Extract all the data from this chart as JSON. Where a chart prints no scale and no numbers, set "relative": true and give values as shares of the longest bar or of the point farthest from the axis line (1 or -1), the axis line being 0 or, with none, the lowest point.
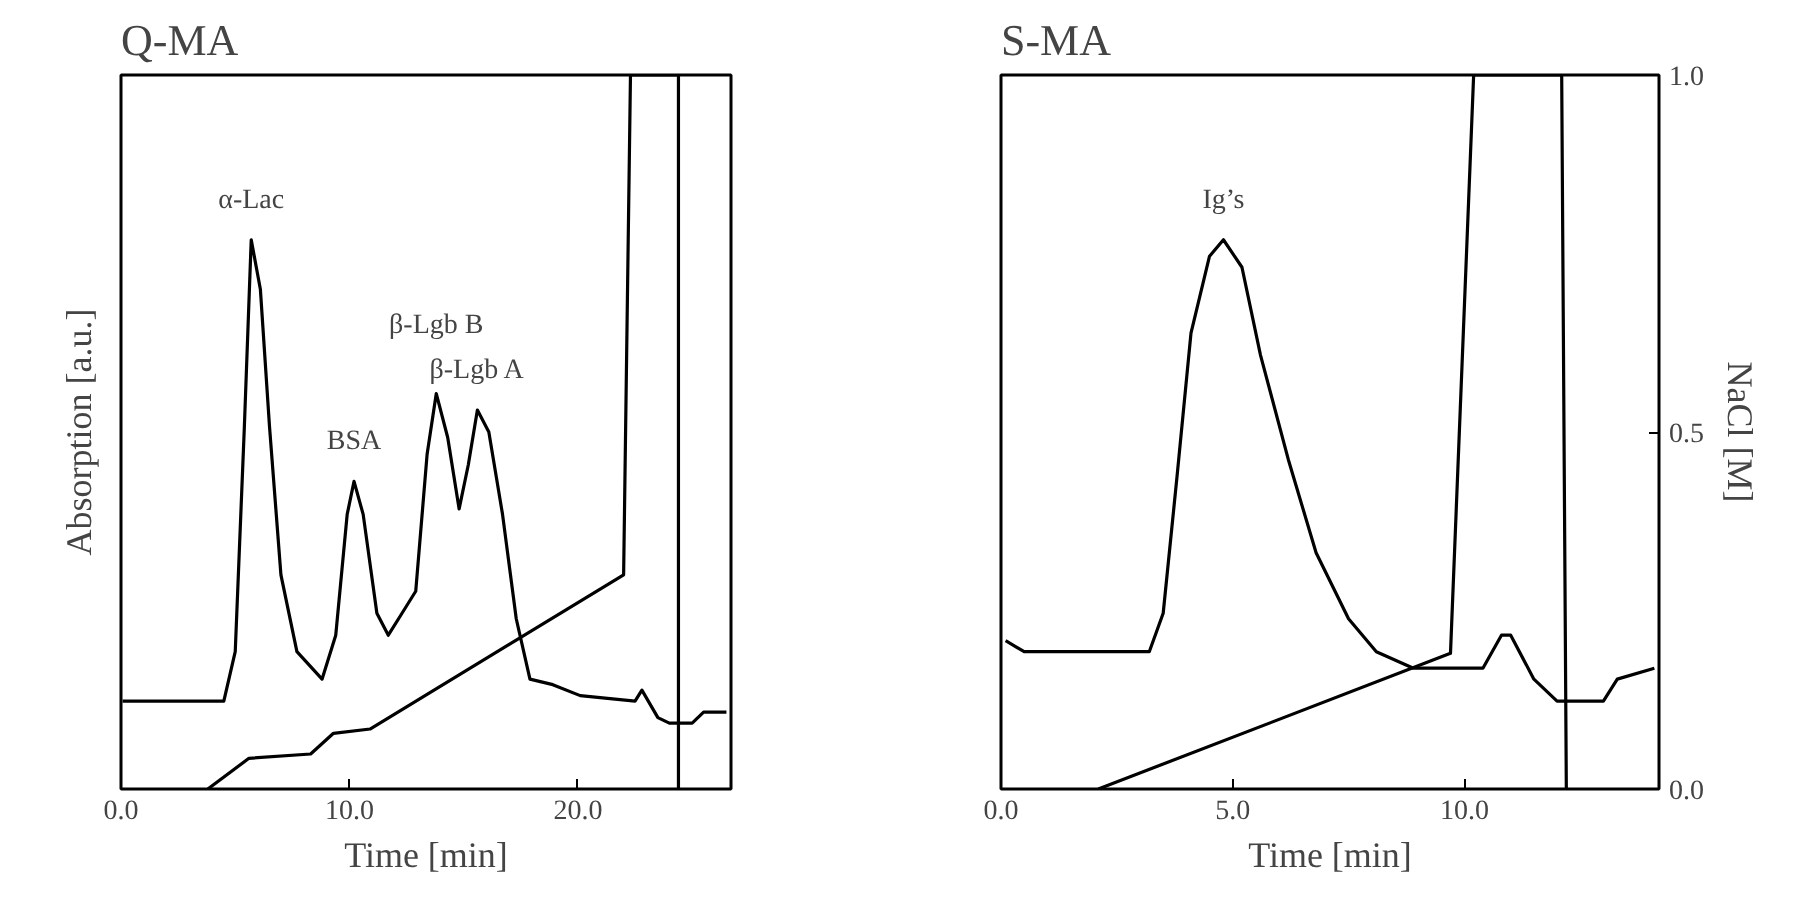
{
  "chart_data": [
    {
      "type": "line",
      "title": "Q-MA",
      "xlabel": "Time [min]",
      "ylabel": "Absorption [a.u.]",
      "relative": true,
      "tick_labels": "x",
      "xlim": [
        0,
        26.7
      ],
      "xticks": [
        {
          "value": 0,
          "label": "0.0"
        },
        {
          "value": 10,
          "label": "10.0"
        },
        {
          "value": 20,
          "label": "20.0"
        }
      ],
      "y2lim": [
        0,
        1
      ],
      "series": [
        {
          "color": "#000000",
          "x": [
            0.07,
            4.5,
            5.0,
            5.4,
            5.7,
            6.1,
            6.5,
            7.0,
            7.7,
            8.8,
            9.4,
            9.9,
            10.2,
            10.6,
            11.2,
            11.7,
            12.3,
            12.9,
            13.4,
            13.8,
            14.3,
            14.8,
            15.2,
            15.6,
            16.1,
            16.7,
            17.3,
            17.9,
            18.9,
            20.1,
            22.5,
            22.8,
            23.5,
            24.0,
            25.0,
            25.5,
            26.5
          ],
          "values": [
            0.16,
            0.16,
            0.25,
            0.66,
            1.0,
            0.91,
            0.66,
            0.39,
            0.25,
            0.2,
            0.28,
            0.5,
            0.56,
            0.5,
            0.32,
            0.28,
            0.32,
            0.36,
            0.61,
            0.72,
            0.64,
            0.51,
            0.59,
            0.69,
            0.65,
            0.5,
            0.31,
            0.2,
            0.19,
            0.17,
            0.16,
            0.18,
            0.13,
            0.12,
            0.12,
            0.14,
            0.14
          ]
        },
        {
          "color": "#000000",
          "axis": "y2",
          "x": [
            3.8,
            5.6,
            8.3,
            9.3,
            10.9,
            22.0,
            22.3,
            24.4,
            24.4
          ],
          "values": [
            0,
            0.043,
            0.049,
            0.078,
            0.084,
            0.3,
            1.0,
            1.0,
            0
          ]
        }
      ],
      "annotations": [
        {
          "text": "α-Lac",
          "x": 5.7,
          "y": 1.0
        },
        {
          "text": "BSA",
          "x": 10.2,
          "y": 0.56
        },
        {
          "text": "β-Lgb B",
          "x": 13.8,
          "y": 0.72
        },
        {
          "text": "β-Lgb A",
          "x": 15.6,
          "y": 0.69
        }
      ]
    },
    {
      "type": "line",
      "title": "S-MA",
      "xlabel": "Time [min]",
      "y2label": "NaCl [M]",
      "relative": true,
      "tick_labels": "x",
      "xlim": [
        0,
        14.2
      ],
      "xticks": [
        {
          "value": 0,
          "label": "0.0"
        },
        {
          "value": 5,
          "label": "5.0"
        },
        {
          "value": 10,
          "label": "10.0"
        }
      ],
      "y2lim": [
        0,
        1
      ],
      "y2ticks": [
        {
          "value": 0,
          "label": "0.0"
        },
        {
          "value": 0.5,
          "label": "0.5"
        },
        {
          "value": 1,
          "label": "1.0"
        }
      ],
      "series": [
        {
          "color": "#000000",
          "x": [
            0.1,
            0.5,
            3.2,
            3.5,
            3.8,
            4.1,
            4.5,
            4.8,
            5.2,
            5.6,
            6.2,
            6.8,
            7.5,
            8.1,
            8.9,
            10.4,
            10.8,
            11.0,
            11.5,
            12.0,
            13.0,
            13.3,
            14.1
          ],
          "values": [
            0.27,
            0.25,
            0.25,
            0.32,
            0.57,
            0.83,
            0.97,
            1.0,
            0.95,
            0.79,
            0.6,
            0.43,
            0.31,
            0.25,
            0.22,
            0.22,
            0.28,
            0.28,
            0.2,
            0.16,
            0.16,
            0.2,
            0.22
          ]
        },
        {
          "color": "#000000",
          "axis": "y2",
          "x": [
            2.1,
            9.7,
            10.2,
            12.1,
            12.2
          ],
          "values": [
            0,
            0.19,
            1.0,
            1.0,
            0
          ]
        }
      ],
      "annotations": [
        {
          "text": "Ig’s",
          "x": 4.8,
          "y": 1.0
        }
      ]
    }
  ]
}
